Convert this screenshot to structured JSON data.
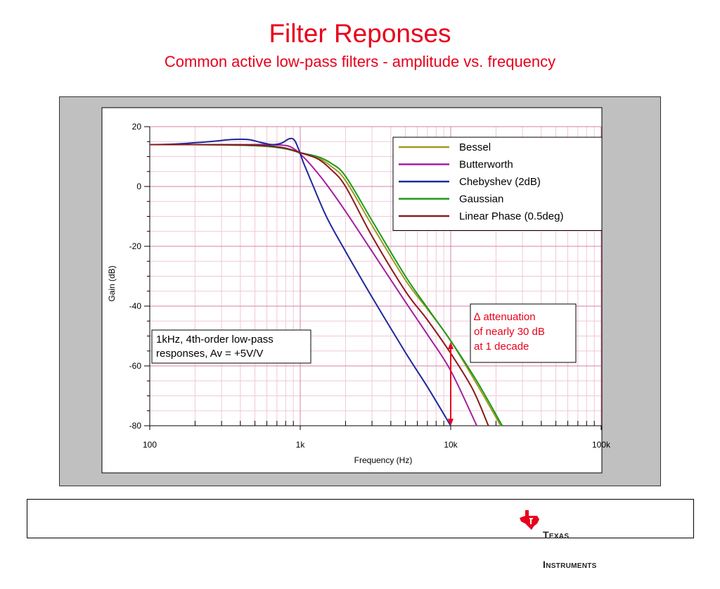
{
  "slide": {
    "title": "Filter Reponses",
    "subtitle": "Common active low-pass filters - amplitude vs. frequency"
  },
  "chart_data": {
    "type": "line",
    "xlabel": "Frequency (Hz)",
    "ylabel": "Gain (dB)",
    "x_scale": "log",
    "xlim": [
      100,
      100000
    ],
    "ylim": [
      -80,
      20
    ],
    "grid": true,
    "x_ticks": [
      {
        "value": 100,
        "label": "100"
      },
      {
        "value": 1000,
        "label": "1k"
      },
      {
        "value": 10000,
        "label": "10k"
      },
      {
        "value": 100000,
        "label": "100k"
      }
    ],
    "y_ticks": [
      {
        "value": 20,
        "label": "20"
      },
      {
        "value": 0,
        "label": "0"
      },
      {
        "value": -20,
        "label": "-20"
      },
      {
        "value": -40,
        "label": "-40"
      },
      {
        "value": -60,
        "label": "-60"
      },
      {
        "value": -80,
        "label": "-80"
      }
    ],
    "legend_position": "top-right",
    "series": [
      {
        "name": "Bessel",
        "color": "#a09a22",
        "x": [
          100,
          200,
          400,
          600,
          800,
          1000,
          1300,
          1600,
          2000,
          3000,
          5000,
          7000,
          10000,
          15000,
          21500
        ],
        "y": [
          14,
          14,
          13.8,
          13.4,
          12.7,
          11.3,
          9.6,
          6.8,
          2.0,
          -13,
          -31.3,
          -41,
          -51.6,
          -66.3,
          -80
        ]
      },
      {
        "name": "Butterworth",
        "color": "#a020a0",
        "x": [
          100,
          200,
          400,
          600,
          800,
          900,
          1000,
          1200,
          1500,
          2000,
          3000,
          5000,
          7000,
          10000,
          14900
        ],
        "y": [
          14,
          14,
          14,
          14,
          13.7,
          12.7,
          10.9,
          6.7,
          0.6,
          -8.3,
          -21.7,
          -38.6,
          -49.5,
          -61.6,
          -80
        ]
      },
      {
        "name": "Chebyshev (2dB)",
        "color": "#1a2a9a",
        "x": [
          100,
          150,
          250,
          350,
          450,
          550,
          650,
          750,
          850,
          920,
          1000,
          1050,
          1200,
          1500,
          2000,
          3000,
          5000,
          7000,
          10000
        ],
        "y": [
          14,
          14.2,
          15,
          15.7,
          15.7,
          14.7,
          14,
          14.5,
          16,
          15.3,
          11,
          8,
          1,
          -10.3,
          -21.7,
          -37,
          -55.5,
          -67,
          -80
        ]
      },
      {
        "name": "Gaussian",
        "color": "#1a9a1a",
        "x": [
          100,
          200,
          400,
          600,
          800,
          1000,
          1300,
          1600,
          2000,
          3000,
          5000,
          7000,
          10000,
          15000,
          22000
        ],
        "y": [
          14,
          14,
          13.8,
          13.4,
          12.6,
          11.3,
          10,
          7.8,
          3.4,
          -11.4,
          -30,
          -40.6,
          -51.6,
          -65.3,
          -80
        ]
      },
      {
        "name": "Linear Phase (0.5deg)",
        "color": "#8a1a1a",
        "x": [
          100,
          200,
          400,
          600,
          800,
          1000,
          1300,
          1600,
          2000,
          3000,
          5000,
          7000,
          10000,
          14000,
          17800
        ],
        "y": [
          14,
          14,
          13.9,
          13.6,
          12.8,
          11.3,
          9.3,
          5.7,
          0,
          -16.6,
          -35,
          -44.6,
          -55.8,
          -67.8,
          -80
        ]
      }
    ],
    "annotations": {
      "note_box": {
        "lines": [
          "1kHz, 4th-order low-pass",
          "responses, Av = +5V/V"
        ]
      },
      "attenuation_box": {
        "lines": [
          "∆ attenuation",
          "of nearly 30 dB",
          "at 1 decade"
        ],
        "color": "#e8001c"
      },
      "arrow": {
        "x": 10000,
        "y_from": -52,
        "y_to": -80,
        "color": "#e8001c"
      }
    }
  },
  "footer": {
    "logo_text_top": "Texas",
    "logo_text_bottom": "Instruments"
  }
}
